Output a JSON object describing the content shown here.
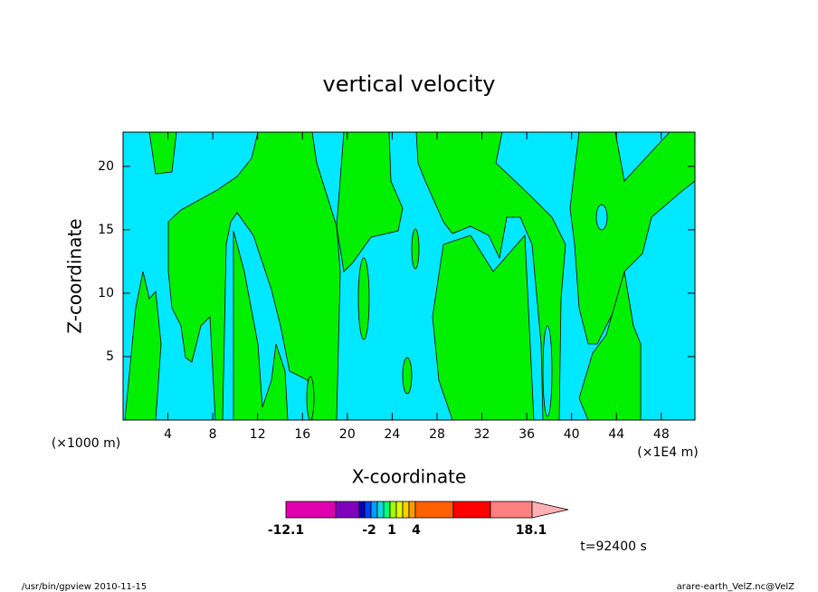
{
  "chart_data": {
    "type": "contour",
    "title": "vertical velocity",
    "x_label": "X-coordinate",
    "y_label": "Z-coordinate",
    "x_unit_left": "(×1000 m)",
    "x_unit_right": "(×1E4 m)",
    "xlim": [
      0,
      51
    ],
    "xticks": [
      4,
      8,
      12,
      16,
      20,
      24,
      28,
      32,
      36,
      40,
      44,
      48
    ],
    "ylim": [
      0,
      22.7
    ],
    "yticks": [
      5,
      10,
      15,
      20
    ],
    "colorbar": {
      "colors": [
        "#e000b0",
        "#8000c0",
        "#0000c0",
        "#0040ff",
        "#00a0ff",
        "#00e0e0",
        "#00ff80",
        "#a0ff00",
        "#e0ff00",
        "#ffd000",
        "#ffa000",
        "#ff6000",
        "#ff0000",
        "#ff8080",
        "#ffb0b0"
      ],
      "labels": [
        -12.1,
        -2,
        1,
        4,
        18.1
      ]
    },
    "time_label": "t=92400 s",
    "footer_left": "/usr/bin/gpview  2010-11-15",
    "footer_right": "arare-earth_VelZ.nc@VelZ"
  }
}
